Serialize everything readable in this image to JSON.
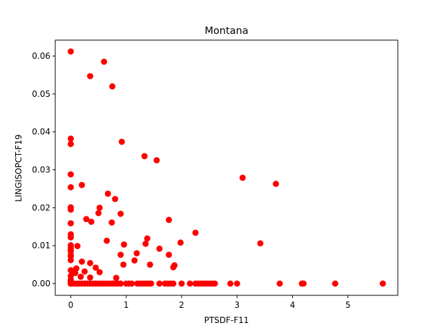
{
  "chart_data": {
    "type": "scatter",
    "title": "Montana",
    "xlabel": "PTSDF-F11",
    "ylabel": "LINGISOPCT-F19",
    "xlim": [
      -0.28,
      5.9
    ],
    "ylim": [
      -0.0031,
      0.0642
    ],
    "xticks": [
      0,
      1,
      2,
      3,
      4,
      5
    ],
    "xtick_labels": [
      "0",
      "1",
      "2",
      "3",
      "4",
      "5"
    ],
    "yticks": [
      0.0,
      0.01,
      0.02,
      0.03,
      0.04,
      0.05,
      0.06
    ],
    "ytick_labels": [
      "0.00",
      "0.01",
      "0.02",
      "0.03",
      "0.04",
      "0.05",
      "0.06"
    ],
    "grid": false,
    "marker_color": "#ff0000",
    "series": [
      {
        "x": [
          0.0,
          0.6,
          0.35,
          0.75,
          0.0,
          0.0,
          0.92,
          1.33,
          1.55,
          0.0,
          3.1,
          3.7,
          0.0,
          0.2,
          0.67,
          0.8,
          0.0,
          0.52,
          0.0,
          0.5,
          0.9,
          1.77,
          0.28,
          0.37,
          0.74,
          0.0,
          2.25,
          0.0,
          0.0,
          1.38,
          0.65,
          3.42,
          1.35,
          0.96,
          1.98,
          0.12,
          0.0,
          0.0,
          1.6,
          0.0,
          0.0,
          0.9,
          0.0,
          1.77,
          1.19,
          0.0,
          0.0,
          1.15,
          0.2,
          0.35,
          0.95,
          1.43,
          1.87,
          0.45,
          0.1,
          1.85,
          0.0,
          0.25,
          0.08,
          0.52,
          0.0,
          0.18,
          0.35,
          0.82,
          0.0,
          0.0,
          0.0,
          0.0,
          0.0,
          0.0,
          0.05,
          0.1,
          0.15,
          0.2,
          0.25,
          0.3,
          0.35,
          0.4,
          0.45,
          0.5,
          0.55,
          0.6,
          0.65,
          0.7,
          0.75,
          0.8,
          0.85,
          0.9,
          1.0,
          1.05,
          1.1,
          1.2,
          1.25,
          1.3,
          1.35,
          1.4,
          1.45,
          1.6,
          1.7,
          1.75,
          1.8,
          1.85,
          2.0,
          2.15,
          2.25,
          2.3,
          2.35,
          2.4,
          2.45,
          2.5,
          2.55,
          2.6,
          2.88,
          3.0,
          3.77,
          4.17,
          4.2,
          4.77,
          5.63
        ],
        "y": [
          0.0612,
          0.0585,
          0.0547,
          0.052,
          0.0382,
          0.0368,
          0.0374,
          0.0336,
          0.0325,
          0.0288,
          0.0279,
          0.0263,
          0.0254,
          0.026,
          0.0237,
          0.0223,
          0.0201,
          0.02,
          0.0195,
          0.0186,
          0.0184,
          0.0168,
          0.017,
          0.0163,
          0.0161,
          0.0159,
          0.0134,
          0.013,
          0.0122,
          0.0119,
          0.0113,
          0.0106,
          0.0105,
          0.0103,
          0.0108,
          0.0099,
          0.0101,
          0.0093,
          0.0092,
          0.0088,
          0.0085,
          0.0076,
          0.0075,
          0.0076,
          0.008,
          0.0072,
          0.0062,
          0.0061,
          0.0058,
          0.0054,
          0.005,
          0.005,
          0.0048,
          0.0042,
          0.004,
          0.0043,
          0.0035,
          0.0032,
          0.0028,
          0.003,
          0.002,
          0.0018,
          0.0016,
          0.0015,
          0.001,
          0.0005,
          0.0,
          0.0,
          0.0,
          0.0,
          0.0,
          0.0,
          0.0,
          0.0,
          0.0,
          0.0,
          0.0,
          0.0,
          0.0,
          0.0,
          0.0,
          0.0,
          0.0,
          0.0,
          0.0,
          0.0,
          0.0,
          0.0,
          0.0,
          0.0,
          0.0,
          0.0,
          0.0,
          0.0,
          0.0,
          0.0,
          0.0,
          0.0,
          0.0,
          0.0,
          0.0,
          0.0,
          0.0,
          0.0,
          0.0,
          0.0,
          0.0,
          0.0,
          0.0,
          0.0,
          0.0,
          0.0,
          0.0,
          0.0,
          0.0,
          0.0,
          0.0,
          0.0,
          0.0
        ]
      }
    ]
  }
}
